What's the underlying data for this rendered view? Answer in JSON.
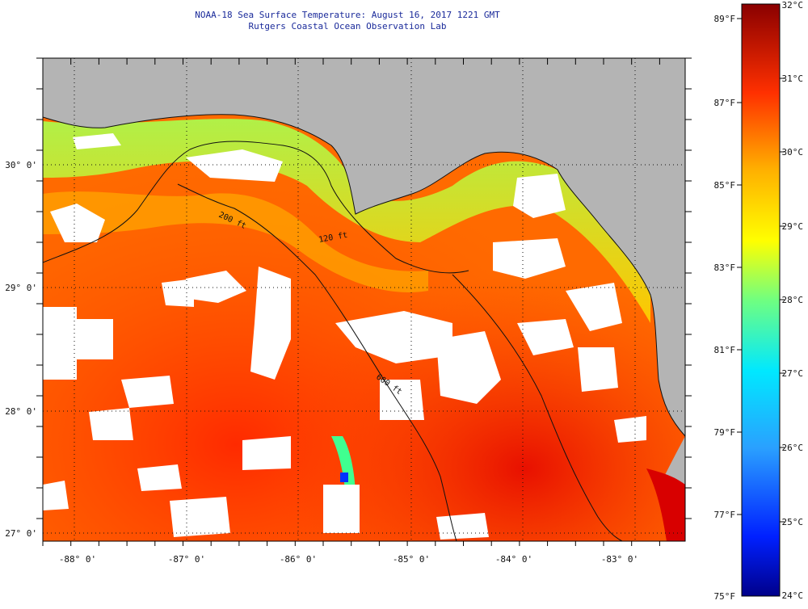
{
  "title": "NOAA-18 Sea Surface Temperature:  August 16, 2017 1221 GMT",
  "subtitle": "Rutgers Coastal Ocean Observation Lab",
  "map": {
    "lon_labels": [
      "-88° 0'",
      "-87° 0'",
      "-86° 0'",
      "-85° 0'",
      "-84° 0'",
      "-83° 0'"
    ],
    "lat_labels": [
      "30° 0'",
      "29° 0'",
      "28° 0'",
      "27° 0'"
    ],
    "isobath_labels": [
      "200 ft",
      "120 ft",
      "600 ft"
    ]
  },
  "colorbar": {
    "fahrenheit_labels": [
      "89°F",
      "87°F",
      "85°F",
      "83°F",
      "81°F",
      "79°F",
      "77°F",
      "75°F"
    ],
    "celsius_labels": [
      "32°C",
      "31°C",
      "30°C",
      "29°C",
      "28°C",
      "27°C",
      "26°C",
      "25°C",
      "24°C"
    ]
  },
  "colors": {
    "land": "#b4b4b4",
    "cloud": "#ffffff",
    "title_text": "#1a2a9a"
  }
}
